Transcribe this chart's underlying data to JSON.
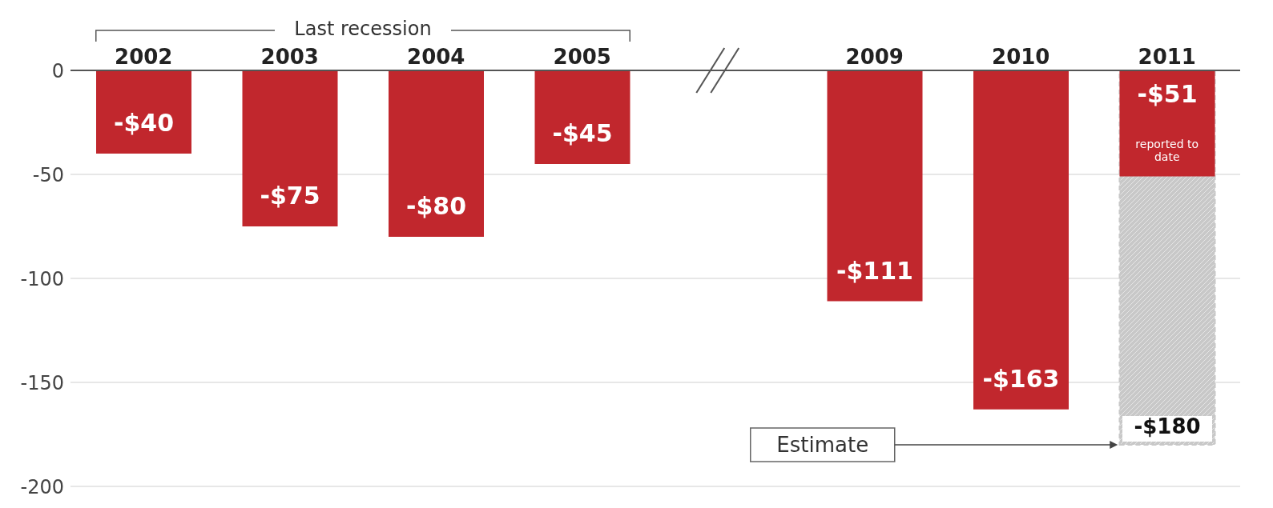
{
  "chart_data": {
    "type": "bar",
    "categories": [
      "2002",
      "2003",
      "2004",
      "2005",
      null,
      "2009",
      "2010",
      "2011"
    ],
    "series": [
      {
        "color": "#c8c8c8",
        "values": [
          null,
          null,
          null,
          null,
          null,
          null,
          null,
          -180
        ],
        "value_labels": [
          null,
          null,
          null,
          null,
          null,
          null,
          null,
          "-$180"
        ]
      },
      {
        "color": "#c1272d",
        "values": [
          -40,
          -75,
          -80,
          -45,
          null,
          -111,
          -163,
          -51
        ],
        "value_labels": [
          "-$40",
          "-$75",
          "-$80",
          "-$45",
          null,
          "-$111",
          "-$163",
          "-$51"
        ]
      }
    ],
    "ylim": [
      -200,
      0
    ],
    "yticks": [
      0,
      -50,
      -100,
      -150,
      -200
    ],
    "grid": "y",
    "legend": false,
    "annotations": [
      "Last recession",
      {
        "text": "reported to date",
        "x": "2011",
        "y": -51
      },
      "Estimate"
    ]
  }
}
